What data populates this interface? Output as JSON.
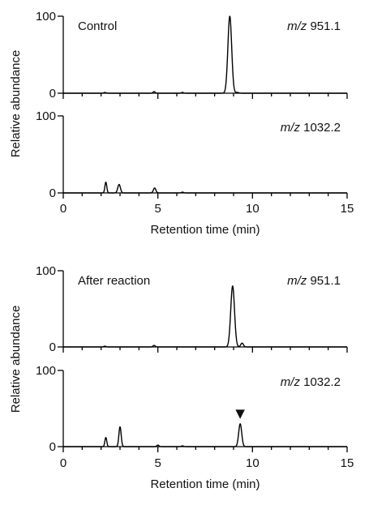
{
  "chart_data": {
    "type": "line",
    "figure_groups": [
      {
        "condition": "Control",
        "ylabel": "Relative abundance",
        "xlabel": "Retention time (min)",
        "panels": [
          {
            "mz_prefix": "m/z",
            "mz_value": "951.1",
            "ylim": [
              0,
              100
            ],
            "yticks": [
              "0",
              "100"
            ],
            "show_x_tick_labels": false,
            "baseline_blips": [
              {
                "x": 2.2,
                "y": 1
              },
              {
                "x": 4.8,
                "y": 2
              },
              {
                "x": 6.3,
                "y": 1
              }
            ],
            "peaks": [
              {
                "x": 8.8,
                "y": 100,
                "width": 0.1
              },
              {
                "x": 9.2,
                "y": 1,
                "width": 0.08
              }
            ],
            "marker": null
          },
          {
            "mz_prefix": "m/z",
            "mz_value": "1032.2",
            "ylim": [
              0,
              100
            ],
            "yticks": [
              "0",
              "100"
            ],
            "show_x_tick_labels": true,
            "baseline_blips": [
              {
                "x": 4.8,
                "y": 3
              },
              {
                "x": 6.3,
                "y": 1
              }
            ],
            "peaks": [
              {
                "x": 2.25,
                "y": 14,
                "width": 0.05
              },
              {
                "x": 2.95,
                "y": 11,
                "width": 0.07
              },
              {
                "x": 4.85,
                "y": 4,
                "width": 0.06
              }
            ],
            "marker": null
          }
        ]
      },
      {
        "condition": "After reaction",
        "ylabel": "Relative abundance",
        "xlabel": "Retention time (min)",
        "panels": [
          {
            "mz_prefix": "m/z",
            "mz_value": "951.1",
            "ylim": [
              0,
              100
            ],
            "yticks": [
              "0",
              "100"
            ],
            "show_x_tick_labels": false,
            "baseline_blips": [
              {
                "x": 2.2,
                "y": 1
              },
              {
                "x": 4.8,
                "y": 2
              }
            ],
            "peaks": [
              {
                "x": 8.95,
                "y": 80,
                "width": 0.1
              },
              {
                "x": 9.45,
                "y": 5,
                "width": 0.07
              }
            ],
            "marker": null
          },
          {
            "mz_prefix": "m/z",
            "mz_value": "1032.2",
            "ylim": [
              0,
              100
            ],
            "yticks": [
              "0",
              "100"
            ],
            "show_x_tick_labels": true,
            "baseline_blips": [
              {
                "x": 5.0,
                "y": 2
              },
              {
                "x": 6.3,
                "y": 1
              }
            ],
            "peaks": [
              {
                "x": 2.25,
                "y": 12,
                "width": 0.05
              },
              {
                "x": 3.0,
                "y": 26,
                "width": 0.06
              },
              {
                "x": 9.35,
                "y": 30,
                "width": 0.08
              }
            ],
            "marker": {
              "symbol": "▼",
              "x": 9.35
            }
          }
        ]
      }
    ],
    "xlim": [
      0,
      15
    ],
    "xticks": [
      0,
      5,
      10,
      15
    ],
    "x_minor_ticks": [
      1,
      2,
      3,
      4,
      6,
      7,
      8,
      9,
      11,
      12,
      13,
      14
    ],
    "xtick_labels": [
      "0",
      "5",
      "10",
      "15"
    ],
    "grid": false,
    "legend": "none"
  }
}
